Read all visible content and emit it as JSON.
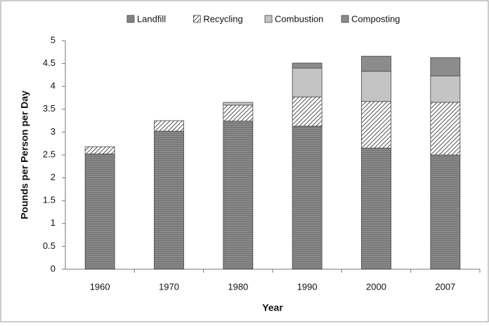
{
  "chart_data": {
    "type": "stacked-bar",
    "x_label": "Year",
    "y_label": "Pounds per Person per Day",
    "categories": [
      "1960",
      "1970",
      "1980",
      "1990",
      "2000",
      "2007"
    ],
    "series": [
      {
        "name": "Landfill",
        "color": "#8a8a8a",
        "pattern": "horizontal-lines",
        "values": [
          2.52,
          3.02,
          3.24,
          3.13,
          2.65,
          2.5
        ]
      },
      {
        "name": "Recycling",
        "color": "#ffffff",
        "pattern": "diagonal-hatch",
        "values": [
          0.16,
          0.23,
          0.35,
          0.64,
          1.02,
          1.15
        ]
      },
      {
        "name": "Combustion",
        "color": "#c4c4c4",
        "pattern": "solid",
        "values": [
          0,
          0,
          0.06,
          0.63,
          0.66,
          0.58
        ]
      },
      {
        "name": "Composting",
        "color": "#8c8c8c",
        "pattern": "solid",
        "values": [
          0,
          0,
          0,
          0.11,
          0.33,
          0.4
        ]
      }
    ],
    "ylim": [
      0,
      5
    ],
    "yticks": [
      0,
      0.5,
      1,
      1.5,
      2,
      2.5,
      3,
      3.5,
      4,
      4.5,
      5
    ],
    "legend": "top",
    "grid": false
  }
}
